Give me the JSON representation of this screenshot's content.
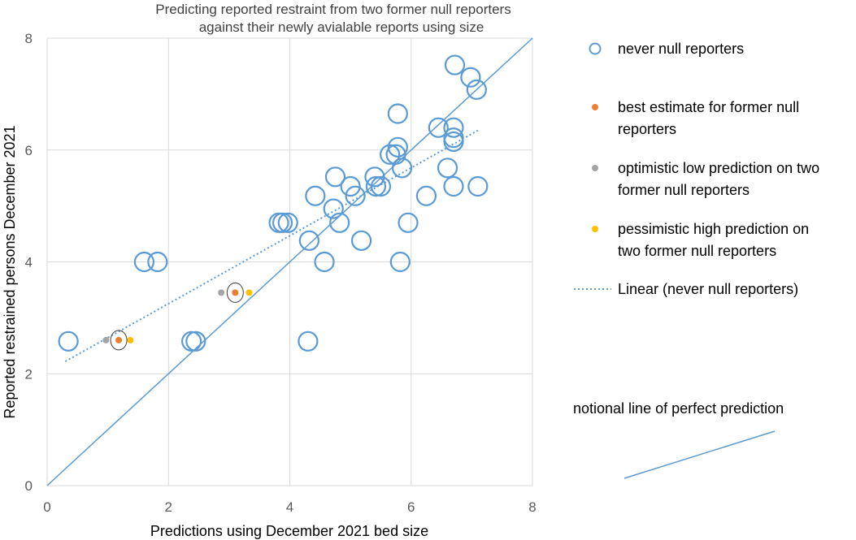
{
  "chart_data": {
    "type": "scatter",
    "title": [
      "Predicting reported restraint from two former null reporters",
      "against their newly avialable reports using size"
    ],
    "xlabel": "Predictions using December 2021 bed size",
    "ylabel": "Reported restrained persons December 2021",
    "xlim": [
      0,
      8
    ],
    "ylim": [
      0,
      8
    ],
    "xticks": [
      "0",
      "2",
      "4",
      "6",
      "8"
    ],
    "yticks": [
      "0",
      "2",
      "4",
      "6",
      "8"
    ],
    "grid": true,
    "legend_position": "right",
    "series": [
      {
        "name": "never null reporters",
        "marker": "open-circle",
        "color": "#5B9BD5",
        "points": [
          [
            0.35,
            2.58
          ],
          [
            1.6,
            4.0
          ],
          [
            1.82,
            4.0
          ],
          [
            2.38,
            2.58
          ],
          [
            2.45,
            2.58
          ],
          [
            3.82,
            4.7
          ],
          [
            3.88,
            4.7
          ],
          [
            3.97,
            4.7
          ],
          [
            4.32,
            4.38
          ],
          [
            4.42,
            5.18
          ],
          [
            4.57,
            4.0
          ],
          [
            4.3,
            2.58
          ],
          [
            4.72,
            4.95
          ],
          [
            4.75,
            5.52
          ],
          [
            4.82,
            4.7
          ],
          [
            5.0,
            5.35
          ],
          [
            5.08,
            5.18
          ],
          [
            5.18,
            4.38
          ],
          [
            5.4,
            5.52
          ],
          [
            5.42,
            5.35
          ],
          [
            5.5,
            5.35
          ],
          [
            5.65,
            5.92
          ],
          [
            5.75,
            5.92
          ],
          [
            5.78,
            6.05
          ],
          [
            5.78,
            6.65
          ],
          [
            5.82,
            4.0
          ],
          [
            5.85,
            5.68
          ],
          [
            5.95,
            4.7
          ],
          [
            6.25,
            5.18
          ],
          [
            6.45,
            6.4
          ],
          [
            6.6,
            5.68
          ],
          [
            6.7,
            6.4
          ],
          [
            6.7,
            6.22
          ],
          [
            6.7,
            6.15
          ],
          [
            6.7,
            5.35
          ],
          [
            6.72,
            7.52
          ],
          [
            6.98,
            7.3
          ],
          [
            7.08,
            7.08
          ],
          [
            7.1,
            5.35
          ]
        ]
      },
      {
        "name": "best estimate for former null reporters",
        "marker": "dot",
        "color": "#ED7D31",
        "points": [
          [
            1.18,
            2.6
          ],
          [
            3.1,
            3.45
          ]
        ]
      },
      {
        "name": "optimistic low prediction on two former null reporters",
        "marker": "dot",
        "color": "#A5A5A5",
        "points": [
          [
            0.97,
            2.6
          ],
          [
            2.87,
            3.45
          ]
        ]
      },
      {
        "name": "pessimistic high prediction on two former null reporters",
        "marker": "dot",
        "color": "#FFC000",
        "points": [
          [
            1.37,
            2.6
          ],
          [
            3.33,
            3.45
          ]
        ]
      }
    ],
    "highlight_rings": [
      [
        1.18,
        2.6
      ],
      [
        3.1,
        3.45
      ]
    ],
    "trendline": {
      "name": "Linear (never null reporters)",
      "style": "dotted",
      "color": "#5B9BD5",
      "x_range": [
        0.3,
        7.1
      ],
      "y_range": [
        2.22,
        6.35
      ]
    },
    "perfect_line": {
      "label": "notional line of perfect prediction",
      "from": [
        0,
        0
      ],
      "to": [
        8,
        8
      ],
      "color": "#5B9BD5"
    },
    "legend": [
      {
        "label_lines": [
          "never null reporters"
        ],
        "symbol": "open-circle",
        "color": "#5B9BD5"
      },
      {
        "label_lines": [
          "best estimate for former null",
          "reporters"
        ],
        "symbol": "dot",
        "color": "#ED7D31"
      },
      {
        "label_lines": [
          "optimistic low prediction on two",
          "former null reporters"
        ],
        "symbol": "dot",
        "color": "#A5A5A5"
      },
      {
        "label_lines": [
          "pessimistic high prediction on",
          "two former null reporters"
        ],
        "symbol": "dot",
        "color": "#FFC000"
      },
      {
        "label_lines": [
          "Linear (never null reporters)"
        ],
        "symbol": "dotted-line",
        "color": "#5B9BD5"
      }
    ]
  }
}
